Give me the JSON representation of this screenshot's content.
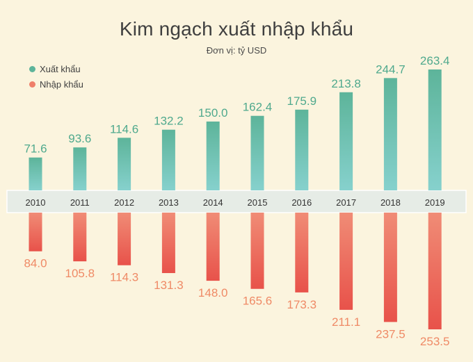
{
  "title": "Kim ngạch xuất nhập khẩu",
  "subtitle": "Đơn vị: tỷ USD",
  "legend": {
    "export_label": "Xuất khẩu",
    "import_label": "Nhập khẩu"
  },
  "colors": {
    "background": "#fbf4de",
    "export_top": "#5db49a",
    "export_bottom": "#86d1cd",
    "export_label": "#4fa98d",
    "import_top": "#f08c76",
    "import_bottom": "#e8524a",
    "import_label": "#ef8a66",
    "axis_band": "#e6ece6"
  },
  "chart_data": {
    "type": "bar",
    "categories": [
      "2010",
      "2011",
      "2012",
      "2013",
      "2014",
      "2015",
      "2016",
      "2017",
      "2018",
      "2019"
    ],
    "series": [
      {
        "name": "Xuất khẩu",
        "values": [
          71.6,
          93.6,
          114.6,
          132.2,
          150.0,
          162.4,
          175.9,
          213.8,
          244.7,
          263.4
        ]
      },
      {
        "name": "Nhập khẩu",
        "values": [
          84.0,
          105.8,
          114.3,
          131.3,
          148.0,
          165.6,
          173.3,
          211.1,
          237.5,
          253.5
        ]
      }
    ],
    "value_labels": {
      "export": [
        "71.6",
        "93.6",
        "114.6",
        "132.2",
        "150.0",
        "162.4",
        "175.9",
        "213.8",
        "244.7",
        "263.4"
      ],
      "import": [
        "84.0",
        "105.8",
        "114.3",
        "131.3",
        "148.0",
        "165.6",
        "173.3",
        "211.1",
        "237.5",
        "253.5"
      ]
    },
    "orientation": "exports above axis, imports mirrored below axis",
    "grid": false,
    "legend_position": "top-left"
  }
}
